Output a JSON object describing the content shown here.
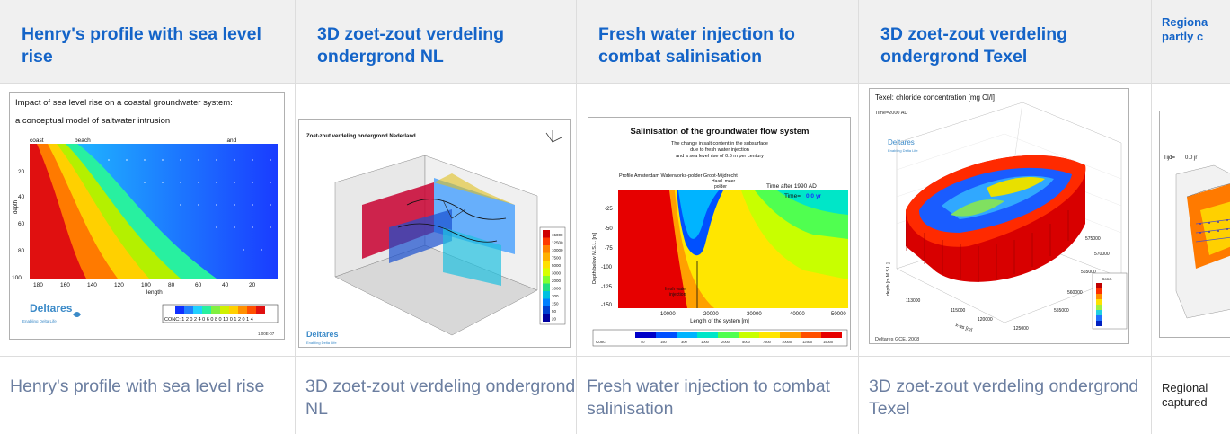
{
  "columns": [
    {
      "title": "Henry's profile with sea level rise",
      "caption": "Henry's profile with sea level rise",
      "image": {
        "heading_line1": "Impact of sea level rise on a coastal groundwater system:",
        "heading_line2": "a conceptual model of saltwater intrusion",
        "top_labels": [
          "coast",
          "beach",
          "land"
        ],
        "y_ticks": [
          "20",
          "40",
          "60",
          "80",
          "100"
        ],
        "x_ticks": [
          "180",
          "160",
          "140",
          "120",
          "100",
          "80",
          "60",
          "40",
          "20"
        ],
        "ylabel": "depth",
        "xlabel": "length",
        "logo": "Deltares",
        "tagline": "Enabling Delta Life",
        "conc_label": "CONC: 1 2 0 2 4 0 6 0 8 0 10 0 1 2 0 1 4",
        "footer": "1.00E-07"
      }
    },
    {
      "title": "3D zoet-zout verdeling ondergrond NL",
      "caption": "3D zoet-zout verdeling ondergrond NL",
      "image": {
        "heading": "Zoet-zout verdeling ondergrond Nederland",
        "logo": "Deltares",
        "tagline": "Enabling Delta Life",
        "legend": [
          "15000",
          "12500",
          "10000",
          "7500",
          "5000",
          "3000",
          "2000",
          "1000",
          "300",
          "150",
          "50",
          "20"
        ],
        "legend_colors": [
          "#d00000",
          "#ff3a00",
          "#ff8000",
          "#ffb000",
          "#ffe000",
          "#d8ff00",
          "#80ff30",
          "#20e080",
          "#00c0e0",
          "#0080ff",
          "#0040d0",
          "#0000a0"
        ]
      }
    },
    {
      "title": "Fresh water injection to combat salinisation",
      "caption": "Fresh water injection to combat  salinisation",
      "image": {
        "heading": "Salinisation of the groundwater flow system",
        "sub1": "The change in salt content in the subsurface",
        "sub2": "due to fresh water injection",
        "sub3": "and a sea level rise of 0.6 m per century",
        "profile": "Profile Amsterdam Waterworks-polder Groot-Mijdrecht",
        "haarlemmermeer1": "Haarl. meer",
        "haarlemmermeer2": "polder",
        "time_after": "Time after 1990 AD",
        "time_label": "Time=",
        "time_value": "0.0 yr",
        "y_ticks": [
          "-25",
          "-50",
          "-75",
          "-100",
          "-125",
          "-150"
        ],
        "x_ticks": [
          "10000",
          "20000",
          "30000",
          "40000",
          "50000"
        ],
        "ylabel": "Depth below M.S.L. [m]",
        "xlabel": "Length of the system [m]",
        "injection1": "fresh water",
        "injection2": "injection",
        "conc_label": "Conc.",
        "conc_values": [
          "40",
          "150",
          "300",
          "1000",
          "2000",
          "5000",
          "7500",
          "10000",
          "12500",
          "15000"
        ],
        "conc_colors": [
          "#0000c8",
          "#0050ff",
          "#00b4ff",
          "#00e6c8",
          "#50ff50",
          "#c8ff00",
          "#ffe600",
          "#ffa000",
          "#ff5000",
          "#e60000"
        ]
      }
    },
    {
      "title": "3D zoet-zout verdeling ondergrond Texel",
      "caption": "3D zoet-zout verdeling ondergrond Texel",
      "image": {
        "heading": "Texel: chloride concentration [mg Cl/l]",
        "time": "Time=2000 AD",
        "logo": "Deltares",
        "tagline": "Enabling Delta Life",
        "footer": "Deltares GCE, 2008",
        "ticks": [
          "113000",
          "115000",
          "120000",
          "125000",
          "555000",
          "560000",
          "565000",
          "570000",
          "575000"
        ],
        "xlabel": "x-as [m]",
        "ylabel": "depth [m M.S.L.]",
        "conc_label": "Conc."
      }
    },
    {
      "title": "Regional partly c",
      "title_lines": [
        "Regiona",
        "partly c"
      ],
      "caption_lines": [
        "Regional",
        "captured"
      ],
      "image": {
        "time_label": "Tijd=",
        "time_value": "0.0 jr"
      }
    }
  ]
}
